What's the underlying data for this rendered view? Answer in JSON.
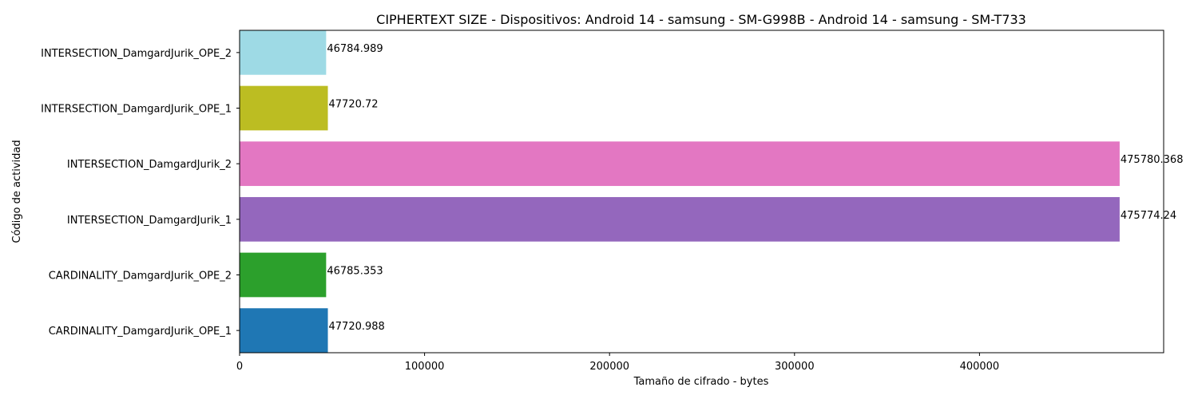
{
  "chart_data": {
    "type": "bar",
    "orientation": "horizontal",
    "title": "CIPHERTEXT SIZE - Dispositivos: Android 14 - samsung - SM-G998B - Android 14 - samsung - SM-T733",
    "xlabel": "Tamaño de cifrado - bytes",
    "ylabel": "Código de actividad",
    "categories": [
      "CARDINALITY_DamgardJurik_OPE_1",
      "CARDINALITY_DamgardJurik_OPE_2",
      "INTERSECTION_DamgardJurik_1",
      "INTERSECTION_DamgardJurik_2",
      "INTERSECTION_DamgardJurik_OPE_1",
      "INTERSECTION_DamgardJurik_OPE_2"
    ],
    "values": [
      47720.988,
      46785.353,
      475774.24,
      475780.368,
      47720.72,
      46784.989
    ],
    "value_labels": [
      "47720.988",
      "46785.353",
      "475774.24",
      "475780.368",
      "47720.72",
      "46784.989"
    ],
    "colors": [
      "#1f77b4",
      "#2ca02c",
      "#9467bd",
      "#e377c2",
      "#bcbd22",
      "#9edae5"
    ],
    "xlim": [
      0,
      499569
    ],
    "xticks": [
      0,
      100000,
      200000,
      300000,
      400000
    ],
    "xtick_labels": [
      "0",
      "100000",
      "200000",
      "300000",
      "400000"
    ],
    "grid": false,
    "legend": "none"
  }
}
